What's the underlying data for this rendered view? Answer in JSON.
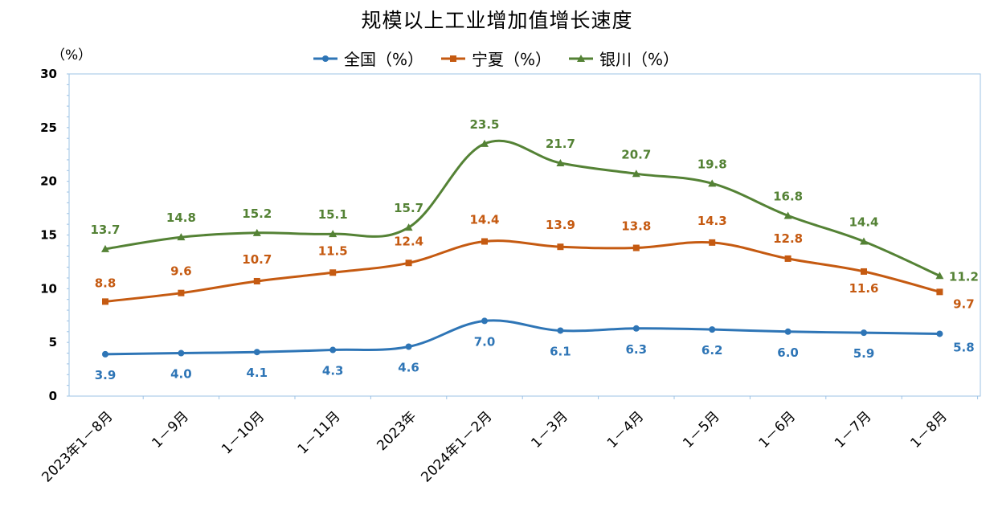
{
  "chart_data": {
    "type": "line",
    "title": "规模以上工业增加值增长速度",
    "ylabel": "（%）",
    "ylim": [
      0,
      30
    ],
    "yticks": [
      0,
      5,
      10,
      15,
      20,
      25,
      30
    ],
    "grid": false,
    "legend_position": "top",
    "categories": [
      "2023年1－8月",
      "1－9月",
      "1－10月",
      "1－11月",
      "2023年",
      "2024年1－2月",
      "1－3月",
      "1－4月",
      "1－5月",
      "1－6月",
      "1－7月",
      "1－8月"
    ],
    "series": [
      {
        "name": "全国（%）",
        "color": "#2E75B6",
        "marker": "circle",
        "values": [
          3.9,
          4.0,
          4.1,
          4.3,
          4.6,
          7.0,
          6.1,
          6.3,
          6.2,
          6.0,
          5.9,
          5.8
        ],
        "labels": [
          "3.9",
          "4.0",
          "4.1",
          "4.3",
          "4.6",
          "7.0",
          "6.1",
          "6.3",
          "6.2",
          "6.0",
          "5.9",
          "5.8"
        ]
      },
      {
        "name": "宁夏（%）",
        "color": "#C55A11",
        "marker": "square",
        "values": [
          8.8,
          9.6,
          10.7,
          11.5,
          12.4,
          14.4,
          13.9,
          13.8,
          14.3,
          12.8,
          11.6,
          9.7
        ],
        "labels": [
          "8.8",
          "9.6",
          "10.7",
          "11.5",
          "12.4",
          "14.4",
          "13.9",
          "13.8",
          "14.3",
          "12.8",
          "11.6",
          "9.7"
        ]
      },
      {
        "name": "银川（%）",
        "color": "#548235",
        "marker": "triangle",
        "values": [
          13.7,
          14.8,
          15.2,
          15.1,
          15.7,
          23.5,
          21.7,
          20.7,
          19.8,
          16.8,
          14.4,
          11.2
        ],
        "labels": [
          "13.7",
          "14.8",
          "15.2",
          "15.1",
          "15.7",
          "23.5",
          "21.7",
          "20.7",
          "19.8",
          "16.8",
          "14.4",
          "11.2"
        ]
      }
    ]
  }
}
